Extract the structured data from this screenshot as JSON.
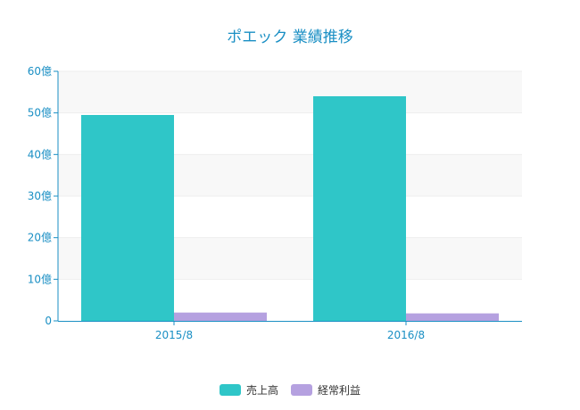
{
  "chart_data": {
    "type": "bar",
    "title": "ポエック 業績推移",
    "categories": [
      "2015/8",
      "2016/8"
    ],
    "series": [
      {
        "name": "売上高",
        "values": [
          49.5,
          54.0
        ],
        "color": "#2fc6c8"
      },
      {
        "name": "経常利益",
        "values": [
          2.0,
          1.8
        ],
        "color": "#b5a1e0"
      }
    ],
    "y_ticks": [
      {
        "value": 0,
        "label": "0"
      },
      {
        "value": 10,
        "label": "10億"
      },
      {
        "value": 20,
        "label": "20億"
      },
      {
        "value": 30,
        "label": "30億"
      },
      {
        "value": 40,
        "label": "40億"
      },
      {
        "value": 50,
        "label": "50億"
      },
      {
        "value": 60,
        "label": "60億"
      }
    ],
    "ylim": [
      0,
      60
    ],
    "xlabel": "",
    "ylabel": "",
    "grid": true,
    "legend_position": "bottom-center",
    "colors": {
      "axis": "#1a8fc4",
      "title": "#1a8fc4",
      "grid": "#eeeeee",
      "band": "#f8f8f8"
    }
  }
}
